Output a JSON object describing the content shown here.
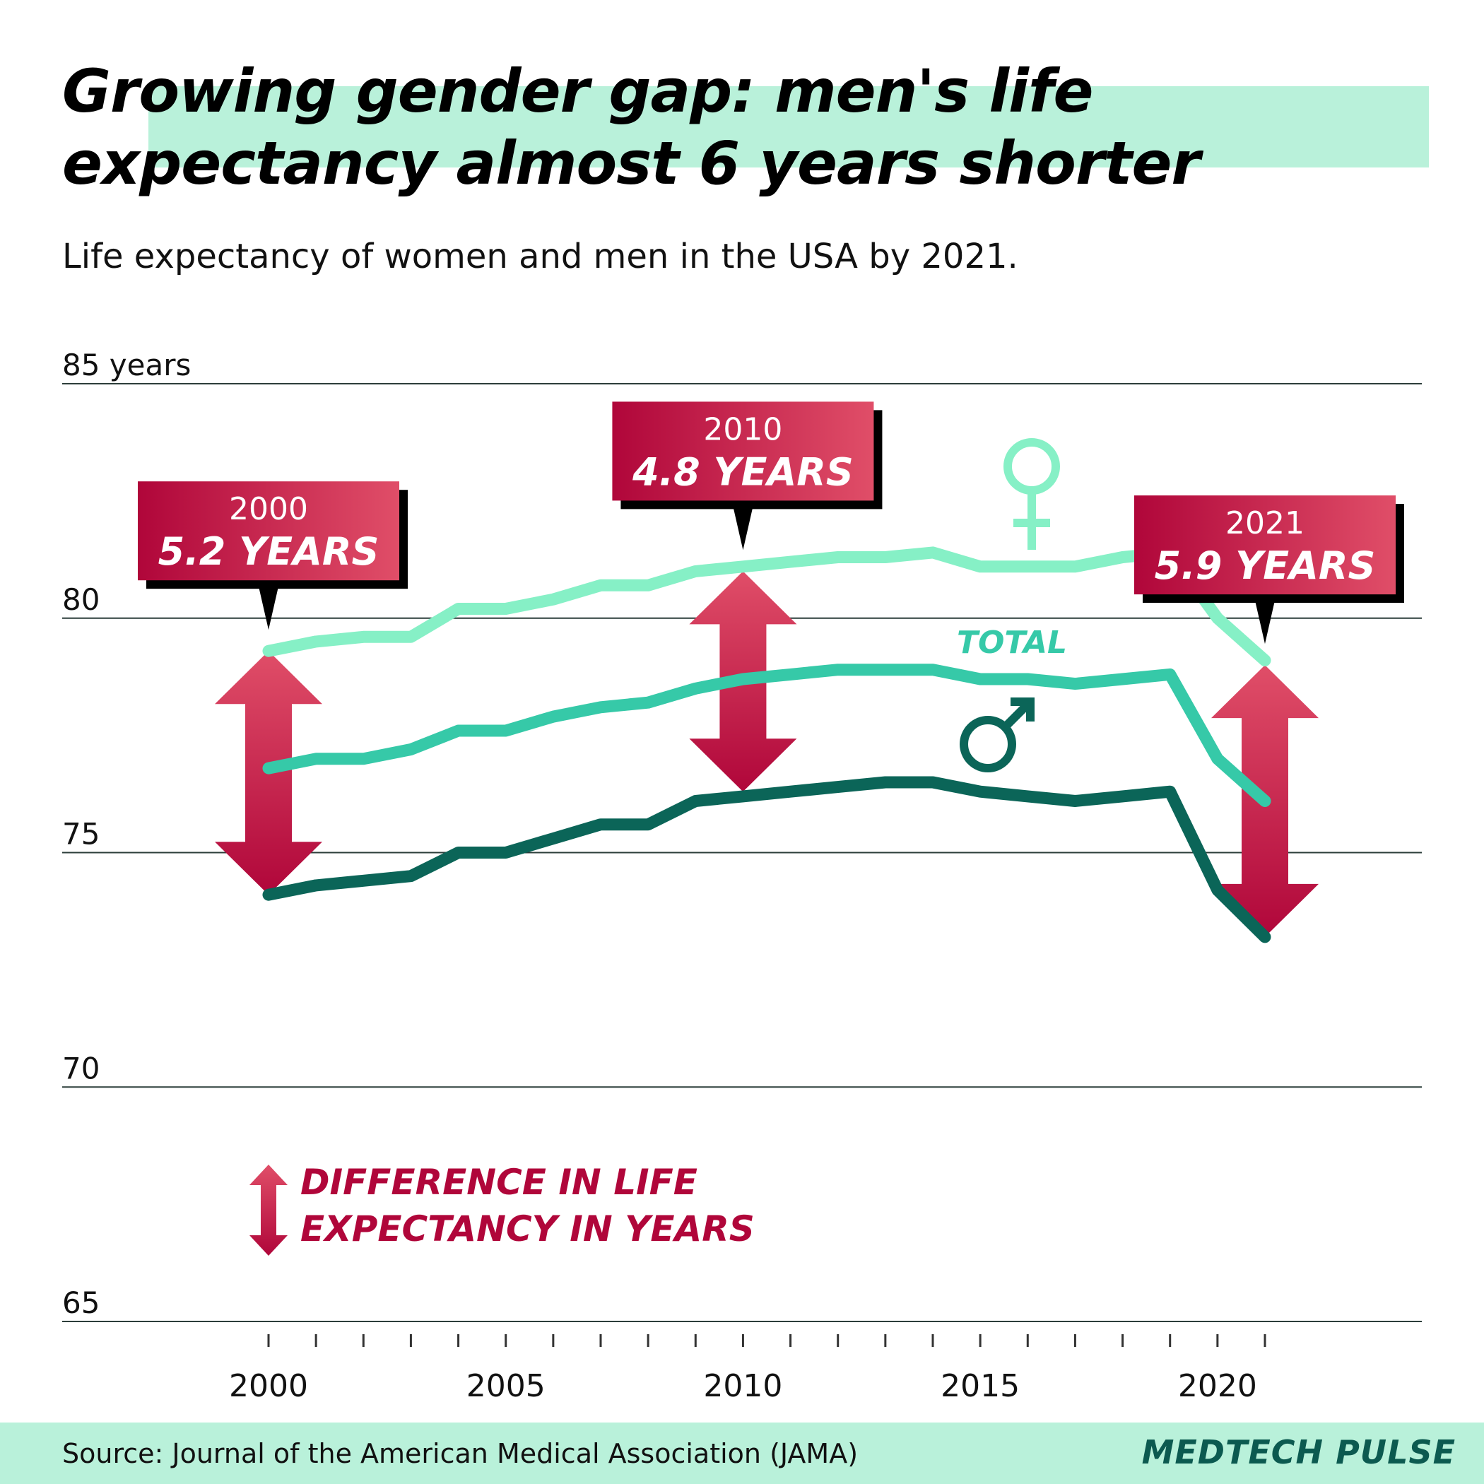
{
  "header": {
    "title": "Growing gender gap: men's life expectancy almost 6 years shorter",
    "subtitle": "Life expectancy of women and men in the USA by 2021."
  },
  "footer": {
    "source": "Source: Journal of the American Medical Association (JAMA)",
    "brand": "MEDTECH PULSE"
  },
  "colors": {
    "women": "#86f0c6",
    "total": "#36c9a8",
    "men": "#0b6558",
    "callout_dark": "#b0063a",
    "callout_light": "#e04e68",
    "band": "#b9f1da"
  },
  "chart_data": {
    "type": "line",
    "ylim": [
      65,
      85
    ],
    "xlim": [
      2000,
      2021
    ],
    "y_ticks": [
      {
        "value": 85,
        "label": "85 years"
      },
      {
        "value": 80,
        "label": "80"
      },
      {
        "value": 75,
        "label": "75"
      },
      {
        "value": 70,
        "label": "70"
      },
      {
        "value": 65,
        "label": "65"
      }
    ],
    "x_ticks": [
      {
        "value": 2000,
        "label": "2000"
      },
      {
        "value": 2005,
        "label": "2005"
      },
      {
        "value": 2010,
        "label": "2010"
      },
      {
        "value": 2015,
        "label": "2015"
      },
      {
        "value": 2020,
        "label": "2020"
      }
    ],
    "grid": true,
    "series": [
      {
        "key": "women",
        "icon": "female-symbol-icon",
        "x": [
          2000,
          2001,
          2002,
          2003,
          2004,
          2005,
          2006,
          2007,
          2008,
          2009,
          2010,
          2011,
          2012,
          2013,
          2014,
          2015,
          2016,
          2017,
          2018,
          2019,
          2020,
          2021
        ],
        "values": [
          79.3,
          79.5,
          79.6,
          79.6,
          80.2,
          80.2,
          80.4,
          80.7,
          80.7,
          81.0,
          81.1,
          81.2,
          81.3,
          81.3,
          81.4,
          81.1,
          81.1,
          81.1,
          81.3,
          81.4,
          80.0,
          79.1
        ]
      },
      {
        "key": "total",
        "name": "TOTAL",
        "x": [
          2000,
          2001,
          2002,
          2003,
          2004,
          2005,
          2006,
          2007,
          2008,
          2009,
          2010,
          2011,
          2012,
          2013,
          2014,
          2015,
          2016,
          2017,
          2018,
          2019,
          2020,
          2021
        ],
        "values": [
          76.8,
          77.0,
          77.0,
          77.2,
          77.6,
          77.6,
          77.9,
          78.1,
          78.2,
          78.5,
          78.7,
          78.8,
          78.9,
          78.9,
          78.9,
          78.7,
          78.7,
          78.6,
          78.7,
          78.8,
          77.0,
          76.1
        ]
      },
      {
        "key": "men",
        "icon": "male-symbol-icon",
        "x": [
          2000,
          2001,
          2002,
          2003,
          2004,
          2005,
          2006,
          2007,
          2008,
          2009,
          2010,
          2011,
          2012,
          2013,
          2014,
          2015,
          2016,
          2017,
          2018,
          2019,
          2020,
          2021
        ],
        "values": [
          74.1,
          74.3,
          74.4,
          74.5,
          75.0,
          75.0,
          75.3,
          75.6,
          75.6,
          76.1,
          76.2,
          76.3,
          76.4,
          76.5,
          76.5,
          76.3,
          76.2,
          76.1,
          76.2,
          76.3,
          74.2,
          73.2
        ]
      }
    ],
    "callouts": [
      {
        "year": 2000,
        "year_label": "2000",
        "value_label": "5.2 YEARS",
        "arrow_top": 79.3,
        "arrow_bottom": 74.1
      },
      {
        "year": 2010,
        "year_label": "2010",
        "value_label": "4.8 YEARS",
        "arrow_top": 81.0,
        "arrow_bottom": 76.3
      },
      {
        "year": 2021,
        "year_label": "2021",
        "value_label": "5.9 YEARS",
        "arrow_top": 79.0,
        "arrow_bottom": 73.2
      }
    ],
    "legend": {
      "position": "bottom-left",
      "line1": "DIFFERENCE IN LIFE",
      "line2": "EXPECTANCY IN YEARS"
    }
  }
}
